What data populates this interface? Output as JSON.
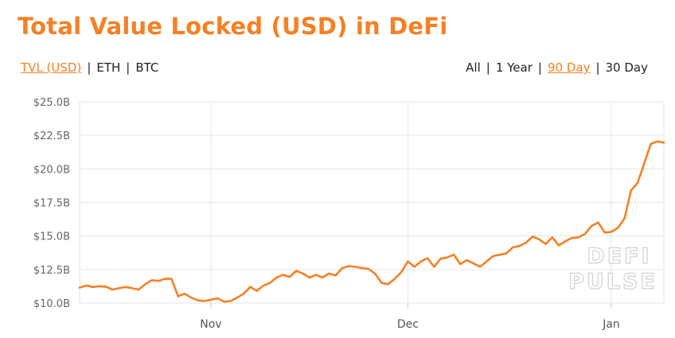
{
  "title": "Total Value Locked (USD) in DeFi",
  "currency_options": [
    {
      "label": "TVL (USD)",
      "active": true
    },
    {
      "label": "ETH",
      "active": false
    },
    {
      "label": "BTC",
      "active": false
    }
  ],
  "range_options": [
    {
      "label": "All",
      "active": false
    },
    {
      "label": "1 Year",
      "active": false
    },
    {
      "label": "90 Day",
      "active": true
    },
    {
      "label": "30 Day",
      "active": false
    }
  ],
  "watermark": [
    "DEFI",
    "PULSE"
  ],
  "colors": {
    "accent": "#f58025",
    "grid": "#e6e6e6",
    "line": "#f58025"
  },
  "chart_data": {
    "type": "line",
    "ylabel": "",
    "xlabel": "",
    "ylim": [
      10.0,
      25.0
    ],
    "yticks": [
      {
        "value": 10.0,
        "label": "$10.0B"
      },
      {
        "value": 12.5,
        "label": "$12.5B"
      },
      {
        "value": 15.0,
        "label": "$15.0B"
      },
      {
        "value": 17.5,
        "label": "$17.5B"
      },
      {
        "value": 20.0,
        "label": "$20.0B"
      },
      {
        "value": 22.5,
        "label": "$22.5B"
      },
      {
        "value": 25.0,
        "label": "$25.0B"
      }
    ],
    "xticks": [
      {
        "date": "2020-11-01",
        "label": "Nov"
      },
      {
        "date": "2020-12-01",
        "label": "Dec"
      },
      {
        "date": "2021-01-01",
        "label": "Jan"
      }
    ],
    "grid": true,
    "series": [
      {
        "x": [
          "2020-10-12",
          "2020-10-13",
          "2020-10-14",
          "2020-10-15",
          "2020-10-16",
          "2020-10-17",
          "2020-10-18",
          "2020-10-19",
          "2020-10-20",
          "2020-10-21",
          "2020-10-22",
          "2020-10-23",
          "2020-10-24",
          "2020-10-25",
          "2020-10-26",
          "2020-10-27",
          "2020-10-28",
          "2020-10-29",
          "2020-10-30",
          "2020-10-31",
          "2020-11-01",
          "2020-11-02",
          "2020-11-03",
          "2020-11-04",
          "2020-11-05",
          "2020-11-06",
          "2020-11-07",
          "2020-11-08",
          "2020-11-09",
          "2020-11-10",
          "2020-11-11",
          "2020-11-12",
          "2020-11-13",
          "2020-11-14",
          "2020-11-15",
          "2020-11-16",
          "2020-11-17",
          "2020-11-18",
          "2020-11-19",
          "2020-11-20",
          "2020-11-21",
          "2020-11-22",
          "2020-11-23",
          "2020-11-24",
          "2020-11-25",
          "2020-11-26",
          "2020-11-27",
          "2020-11-28",
          "2020-11-29",
          "2020-11-30",
          "2020-12-01",
          "2020-12-02",
          "2020-12-03",
          "2020-12-04",
          "2020-12-05",
          "2020-12-06",
          "2020-12-07",
          "2020-12-08",
          "2020-12-09",
          "2020-12-10",
          "2020-12-11",
          "2020-12-12",
          "2020-12-13",
          "2020-12-14",
          "2020-12-15",
          "2020-12-16",
          "2020-12-17",
          "2020-12-18",
          "2020-12-19",
          "2020-12-20",
          "2020-12-21",
          "2020-12-22",
          "2020-12-23",
          "2020-12-24",
          "2020-12-25",
          "2020-12-26",
          "2020-12-27",
          "2020-12-28",
          "2020-12-29",
          "2020-12-30",
          "2020-12-31",
          "2021-01-01",
          "2021-01-02",
          "2021-01-03",
          "2021-01-04",
          "2021-01-05",
          "2021-01-06",
          "2021-01-07",
          "2021-01-08",
          "2021-01-09"
        ],
        "y": [
          11.15,
          11.3,
          11.2,
          11.25,
          11.22,
          11.0,
          11.1,
          11.2,
          11.1,
          11.0,
          11.4,
          11.7,
          11.65,
          11.8,
          11.8,
          10.5,
          10.7,
          10.4,
          10.2,
          10.15,
          10.25,
          10.35,
          10.1,
          10.15,
          10.4,
          10.7,
          11.2,
          10.9,
          11.3,
          11.5,
          11.9,
          12.1,
          11.95,
          12.4,
          12.2,
          11.9,
          12.1,
          11.9,
          12.2,
          12.05,
          12.6,
          12.75,
          12.7,
          12.6,
          12.55,
          12.2,
          11.5,
          11.4,
          11.8,
          12.3,
          13.1,
          12.7,
          13.1,
          13.35,
          12.7,
          13.3,
          13.4,
          13.6,
          12.9,
          13.2,
          12.95,
          12.7,
          13.1,
          13.5,
          13.6,
          13.7,
          14.15,
          14.25,
          14.5,
          14.95,
          14.75,
          14.4,
          14.9,
          14.3,
          14.6,
          14.85,
          14.9,
          15.15,
          15.75,
          16.0,
          15.25,
          15.3,
          15.6,
          16.3,
          18.4,
          18.95,
          20.4,
          21.85,
          22.05,
          21.95
        ]
      }
    ]
  }
}
